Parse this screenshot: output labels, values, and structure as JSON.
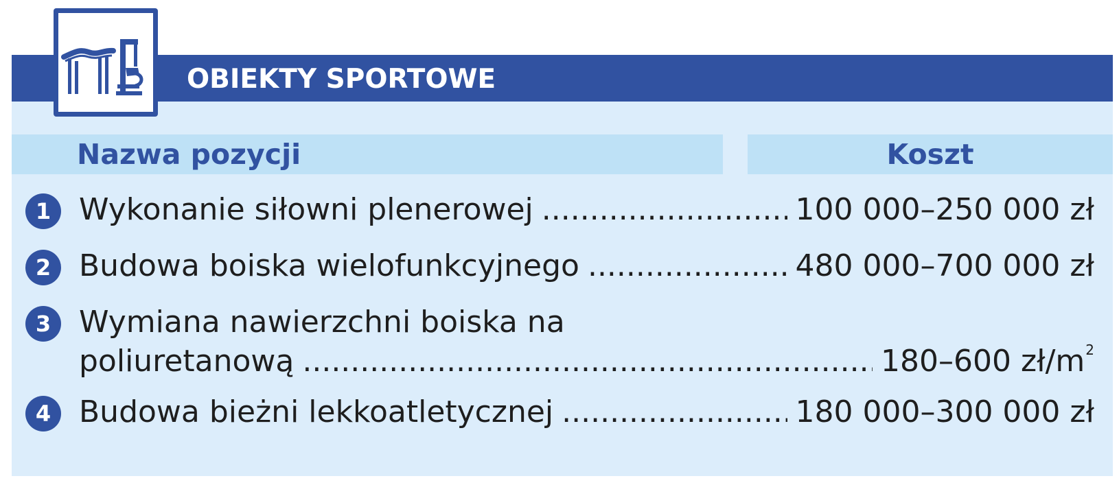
{
  "section": {
    "title": "OBIEKTY SPORTOWE",
    "icon": "outdoor-gym-icon",
    "colors": {
      "primary": "#3152a1",
      "header_bg": "#bee1f6",
      "card_bg": "#dcedfb"
    }
  },
  "table": {
    "columns": {
      "name": "Nazwa pozycji",
      "cost": "Koszt"
    },
    "rows": [
      {
        "number": "1",
        "name": "Wykonanie siłowni plenerowej",
        "cost": "100 000–250 000 zł"
      },
      {
        "number": "2",
        "name": "Budowa boiska wielofunkcyjnego",
        "cost": "480 000–700 000 zł"
      },
      {
        "number": "3",
        "name_line1": "Wymiana nawierzchni boiska na",
        "name_line2": "poliuretanową",
        "cost": "180–600 zł/m",
        "cost_sup": "2"
      },
      {
        "number": "4",
        "name": "Budowa bieżni lekkoatletycznej",
        "cost": "180 000–300 000 zł"
      }
    ]
  }
}
